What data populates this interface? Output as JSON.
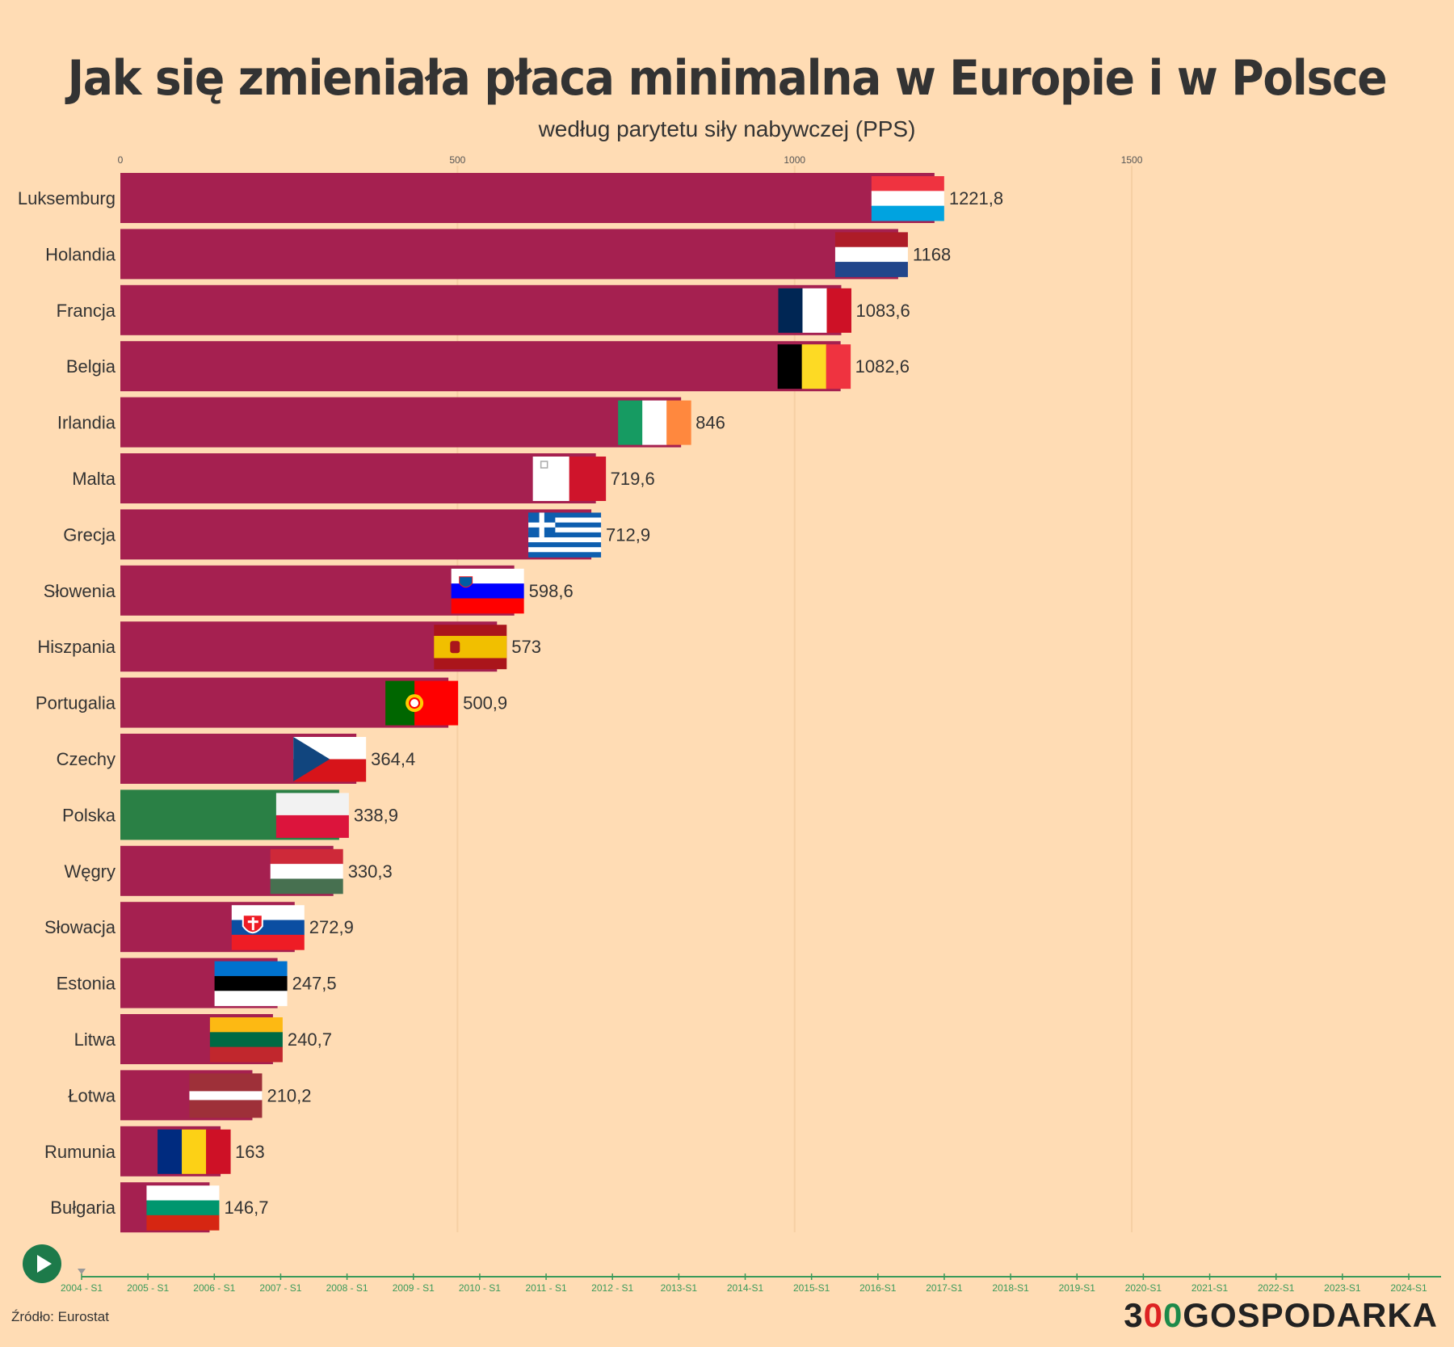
{
  "title": "Jak się zmieniała płaca minimalna w Europie i w Polsce",
  "subtitle": "według parytetu siły nabywczej (PPS)",
  "source": "Źródło: Eurostat",
  "logo": {
    "part1": "3",
    "part2": "0",
    "part3": "0",
    "part4": "GOSPODARKA"
  },
  "colors": {
    "background": "#ffdcb4",
    "bar": "#a52050",
    "highlight": "#2a8045",
    "timeline": "#3a9a5a",
    "play": "#1d7a4a"
  },
  "play_icon": "play-icon",
  "chart_data": {
    "type": "bar",
    "orientation": "horizontal",
    "title": "Jak się zmieniała płaca minimalna w Europie i w Polsce",
    "subtitle": "według parytetu siły nabywczej (PPS)",
    "x_ticks": [
      "0",
      "500",
      "1000",
      "1500"
    ],
    "x_tick_values": [
      0,
      500,
      1000,
      1500
    ],
    "xlim": [
      0,
      1950
    ],
    "highlight": "Polska",
    "categories": [
      "Luksemburg",
      "Holandia",
      "Francja",
      "Belgia",
      "Irlandia",
      "Malta",
      "Grecja",
      "Słowenia",
      "Hiszpania",
      "Portugalia",
      "Czechy",
      "Polska",
      "Węgry",
      "Słowacja",
      "Estonia",
      "Litwa",
      "Łotwa",
      "Rumunia",
      "Bułgaria"
    ],
    "values": [
      1221.8,
      1168,
      1083.6,
      1082.6,
      846,
      719.6,
      712.9,
      598.6,
      573,
      500.9,
      364.4,
      338.9,
      330.3,
      272.9,
      247.5,
      240.7,
      210.2,
      163,
      146.7
    ],
    "value_labels": [
      "1221,8",
      "1168",
      "1083,6",
      "1082,6",
      "846",
      "719,6",
      "712,9",
      "598,6",
      "573",
      "500,9",
      "364,4",
      "338,9",
      "330,3",
      "272,9",
      "247,5",
      "240,7",
      "210,2",
      "163",
      "146,7"
    ],
    "flags": [
      "luxembourg-flag",
      "netherlands-flag",
      "france-flag",
      "belgium-flag",
      "ireland-flag",
      "malta-flag",
      "greece-flag",
      "slovenia-flag",
      "spain-flag",
      "portugal-flag",
      "czechia-flag",
      "poland-flag",
      "hungary-flag",
      "slovakia-flag",
      "estonia-flag",
      "lithuania-flag",
      "latvia-flag",
      "romania-flag",
      "bulgaria-flag"
    ],
    "timeline": [
      "2004 - S1",
      "2005 - S1",
      "2006 - S1",
      "2007 - S1",
      "2008 - S1",
      "2009 - S1",
      "2010 - S1",
      "2011 - S1",
      "2012 - S1",
      "2013-S1",
      "2014-S1",
      "2015-S1",
      "2016-S1",
      "2017-S1",
      "2018-S1",
      "2019-S1",
      "2020-S1",
      "2021-S1",
      "2022-S1",
      "2023-S1",
      "2024-S1"
    ],
    "timeline_current": "2004 - S1"
  }
}
